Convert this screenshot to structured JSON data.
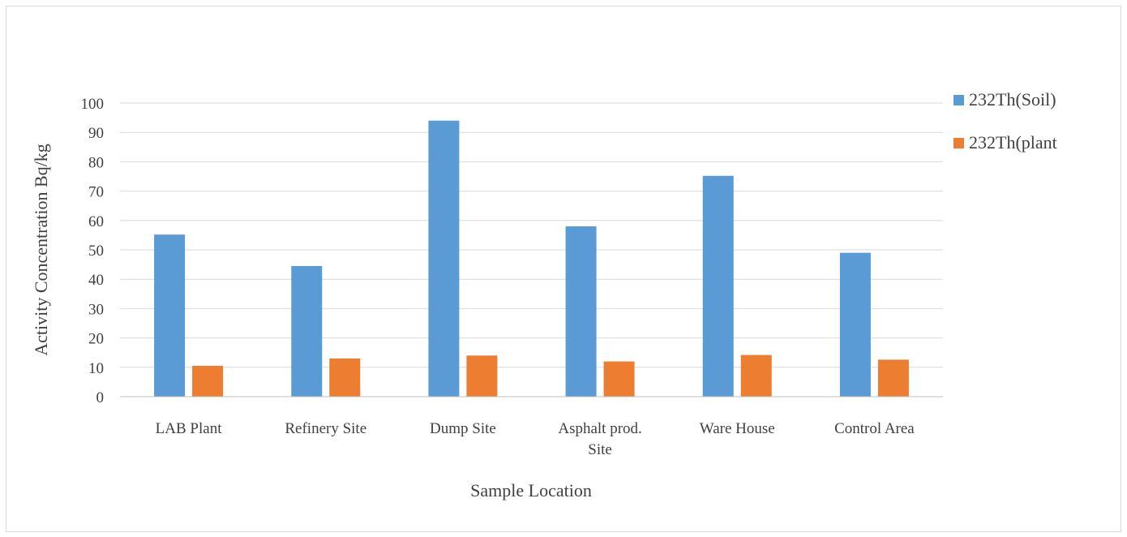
{
  "chart_data": {
    "type": "bar",
    "title": "",
    "xlabel": "Sample Location",
    "ylabel": "Activity Concentration Bq/kg",
    "ylim": [
      0,
      100
    ],
    "yticks": [
      0,
      10,
      20,
      30,
      40,
      50,
      60,
      70,
      80,
      90,
      100
    ],
    "grid": true,
    "legend": "right",
    "categories": [
      [
        "LAB Plant"
      ],
      [
        "Refinery Site"
      ],
      [
        "Dump Site"
      ],
      [
        "Asphalt prod.",
        "Site"
      ],
      [
        "Ware House"
      ],
      [
        "Control Area"
      ]
    ],
    "series": [
      {
        "name": "232Th(Soil)",
        "color": "#5b9bd5",
        "values": [
          55.2,
          44.5,
          94.0,
          58.0,
          75.2,
          49.0
        ]
      },
      {
        "name": "232Th(plant",
        "color": "#ed7d31",
        "values": [
          10.5,
          13.0,
          14.0,
          12.0,
          14.2,
          12.6
        ]
      }
    ]
  }
}
